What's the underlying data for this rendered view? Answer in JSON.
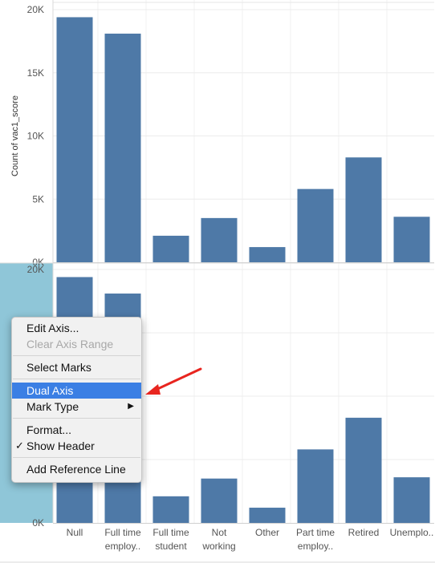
{
  "chart_data": [
    {
      "type": "bar",
      "categories": [
        "Null",
        "Full time employ..",
        "Full time student",
        "Not working",
        "Other",
        "Part time employ..",
        "Retired",
        "Unemplo.."
      ],
      "values": [
        19400,
        18100,
        2100,
        3500,
        1200,
        5800,
        8300,
        3600
      ],
      "ylabel": "Count of vac1_score",
      "ylim": [
        0,
        20000
      ],
      "yticks": [
        "0K",
        "5K",
        "10K",
        "15K",
        "20K"
      ]
    },
    {
      "type": "bar",
      "categories": [
        "Null",
        "Full time employ..",
        "Full time student",
        "Not working",
        "Other",
        "Part time employ..",
        "Retired",
        "Unemplo.."
      ],
      "values": [
        19400,
        18100,
        2100,
        3500,
        1200,
        5800,
        8300,
        3600
      ],
      "ylim": [
        0,
        20000
      ],
      "yticks": [
        "0K",
        "20K"
      ]
    }
  ],
  "x_labels": [
    {
      "line1": "Null",
      "line2": ""
    },
    {
      "line1": "Full time",
      "line2": "employ.."
    },
    {
      "line1": "Full time",
      "line2": "student"
    },
    {
      "line1": "Not",
      "line2": "working"
    },
    {
      "line1": "Other",
      "line2": ""
    },
    {
      "line1": "Part time",
      "line2": "employ.."
    },
    {
      "line1": "Retired",
      "line2": ""
    },
    {
      "line1": "Unemplo..",
      "line2": ""
    }
  ],
  "context_menu": {
    "items": [
      {
        "label": "Edit Axis...",
        "name": "menu-item-edit-axis",
        "disabled": false
      },
      {
        "label": "Clear Axis Range",
        "name": "menu-item-clear-axis-range",
        "disabled": true
      },
      {
        "separator": true
      },
      {
        "label": "Select Marks",
        "name": "menu-item-select-marks"
      },
      {
        "separator": true
      },
      {
        "label": "Dual Axis",
        "name": "menu-item-dual-axis",
        "selected": true
      },
      {
        "label": "Mark Type",
        "name": "menu-item-mark-type",
        "submenu": true
      },
      {
        "separator": true
      },
      {
        "label": "Format...",
        "name": "menu-item-format"
      },
      {
        "label": "Show Header",
        "name": "menu-item-show-header",
        "checked": true
      },
      {
        "separator": true
      },
      {
        "label": "Add Reference Line",
        "name": "menu-item-add-reference-line"
      }
    ]
  },
  "colors": {
    "bar": "#4e79a7",
    "axis_highlight": "#8fc6d8",
    "menu_selected": "#3b7fe4",
    "arrow": "#e8251f"
  }
}
